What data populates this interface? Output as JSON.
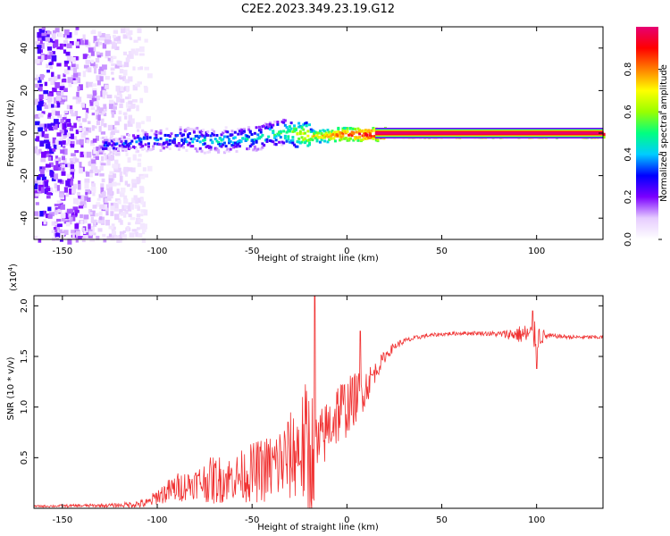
{
  "title": "C2E2.2023.349.23.19.G12",
  "chart_data": [
    {
      "type": "heatmap",
      "xlabel": "Height of straight line (km)",
      "ylabel": "Frequency (Hz)",
      "xlim": [
        -165,
        135
      ],
      "ylim": [
        -50,
        50
      ],
      "xticks": [
        -150,
        -100,
        -50,
        0,
        50,
        100
      ],
      "xtick_labels": [
        "-150",
        "-100",
        "-50",
        "0",
        "50",
        "100"
      ],
      "yticks": [
        -40,
        -20,
        0,
        20,
        40
      ],
      "ytick_labels": [
        "-40",
        "-20",
        "0",
        "20",
        "40"
      ],
      "colorbar": {
        "label": "Normalized spectral amplitude",
        "range": [
          0,
          1
        ],
        "ticks": [
          0.0,
          0.2,
          0.4,
          0.6,
          0.8
        ],
        "tick_labels": [
          "0.0",
          "0.2",
          "0.4",
          "0.6",
          "0.8"
        ],
        "colors": [
          "#ffffff",
          "#e6ccff",
          "#7b00ff",
          "#0000ff",
          "#00ccff",
          "#00ff80",
          "#99ff00",
          "#ffff00",
          "#ff8000",
          "#ff0000",
          "#e60073"
        ]
      },
      "signal_ridge": {
        "description_points_x": [
          -125,
          -110,
          -90,
          -70,
          -50,
          -35,
          -25,
          -15,
          -5,
          10,
          20,
          50,
          100,
          133
        ],
        "description_points_y": [
          -5,
          -3,
          -2,
          -3,
          -2,
          1,
          0,
          -1,
          0,
          0,
          0,
          0,
          0,
          0
        ],
        "band_amplitude": [
          0.3,
          0.35,
          0.4,
          0.45,
          0.45,
          0.55,
          0.7,
          0.75,
          0.85,
          0.95,
          1.0,
          1.0,
          1.0,
          1.0
        ]
      }
    },
    {
      "type": "line",
      "xlabel": "Height of straight line (km)",
      "ylabel": "SNR (10 * v/v)",
      "y_multiplier": "(x10^4)",
      "y_multiplier_base": "(x10",
      "y_multiplier_exp": "4",
      "y_multiplier_close": ")",
      "xlim": [
        -165,
        135
      ],
      "ylim": [
        0,
        2.1
      ],
      "xticks": [
        -150,
        -100,
        -50,
        0,
        50,
        100
      ],
      "xtick_labels": [
        "-150",
        "-100",
        "-50",
        "0",
        "50",
        "100"
      ],
      "yticks": [
        0.5,
        1.0,
        1.5,
        2.0
      ],
      "ytick_labels": [
        "0.5",
        "1.0",
        "1.5",
        "2.0"
      ],
      "series": [
        {
          "color": "#f03030",
          "envelope_x": [
            -165,
            -120,
            -105,
            -100,
            -90,
            -80,
            -70,
            -60,
            -50,
            -40,
            -30,
            -25,
            -20,
            -15,
            -10,
            -5,
            0,
            5,
            10,
            15,
            20,
            25,
            30,
            40,
            50,
            60,
            70,
            80,
            85,
            90,
            95,
            100,
            105,
            110,
            120,
            135
          ],
          "envelope_y": [
            0.02,
            0.03,
            0.05,
            0.12,
            0.2,
            0.25,
            0.28,
            0.3,
            0.35,
            0.4,
            0.5,
            0.6,
            0.55,
            0.6,
            0.8,
            0.95,
            1.0,
            1.1,
            1.2,
            1.35,
            1.5,
            1.6,
            1.65,
            1.7,
            1.72,
            1.73,
            1.73,
            1.72,
            1.72,
            1.72,
            1.71,
            1.7,
            1.7,
            1.7,
            1.69,
            1.69
          ],
          "noise_amp_y": [
            0.01,
            0.02,
            0.05,
            0.08,
            0.15,
            0.15,
            0.25,
            0.22,
            0.3,
            0.35,
            0.45,
            0.5,
            0.8,
            0.35,
            0.3,
            0.35,
            0.3,
            0.25,
            0.2,
            0.1,
            0.06,
            0.04,
            0.03,
            0.02,
            0.02,
            0.02,
            0.02,
            0.03,
            0.05,
            0.08,
            0.12,
            0.15,
            0.04,
            0.02,
            0.02,
            0.02
          ],
          "spikes": [
            {
              "x": -17,
              "y": 2.1
            },
            {
              "x": 7,
              "y": 1.75
            },
            {
              "x": 98,
              "y": 1.95
            },
            {
              "x": 100,
              "y": 1.38
            }
          ]
        }
      ]
    }
  ]
}
